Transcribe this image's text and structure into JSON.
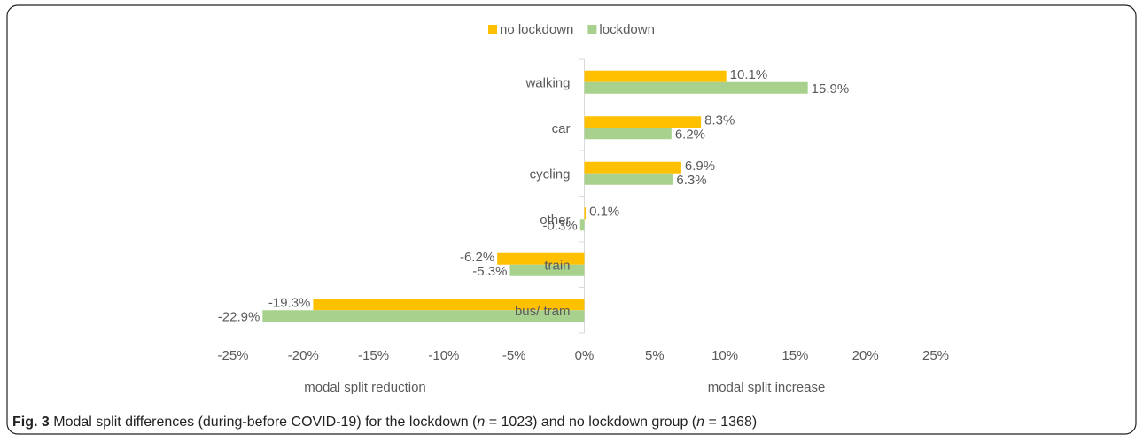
{
  "chart_data": {
    "type": "hbar",
    "categories": [
      "walking",
      "car",
      "cycling",
      "other",
      "train",
      "bus/ tram"
    ],
    "series": [
      {
        "name": "no lockdown",
        "color": "#ffc000",
        "values": [
          10.1,
          8.3,
          6.9,
          0.1,
          -6.2,
          -19.3
        ],
        "value_labels": [
          "10.1%",
          "8.3%",
          "6.9%",
          "0.1%",
          "-6.2%",
          "-19.3%"
        ]
      },
      {
        "name": "lockdown",
        "color": "#a9d18e",
        "values": [
          15.9,
          6.2,
          6.3,
          -0.3,
          -5.3,
          -22.9
        ],
        "value_labels": [
          "15.9%",
          "6.2%",
          "6.3%",
          "-0.3%",
          "-5.3%",
          "-22.9%"
        ]
      }
    ],
    "xlim": [
      -25,
      25
    ],
    "xticks": [
      {
        "value": -25,
        "label": "-25%"
      },
      {
        "value": -20,
        "label": "-20%"
      },
      {
        "value": -15,
        "label": "-15%"
      },
      {
        "value": -10,
        "label": "-10%"
      },
      {
        "value": -5,
        "label": "-5%"
      },
      {
        "value": 0,
        "label": "0%"
      },
      {
        "value": 5,
        "label": "5%"
      },
      {
        "value": 10,
        "label": "10%"
      },
      {
        "value": 15,
        "label": "15%"
      },
      {
        "value": 20,
        "label": "20%"
      },
      {
        "value": 25,
        "label": "25%"
      }
    ],
    "xlabel_left": "modal split reduction",
    "xlabel_right": "modal split increase",
    "legend": "top",
    "grid": false,
    "caption": {
      "label": "Fig. 3",
      "text": [
        "Modal split differences (during-before COVID-19) for the lockdown (",
        "n",
        " = 1023) and no lockdown group (",
        "n",
        " = 1368)"
      ]
    }
  }
}
